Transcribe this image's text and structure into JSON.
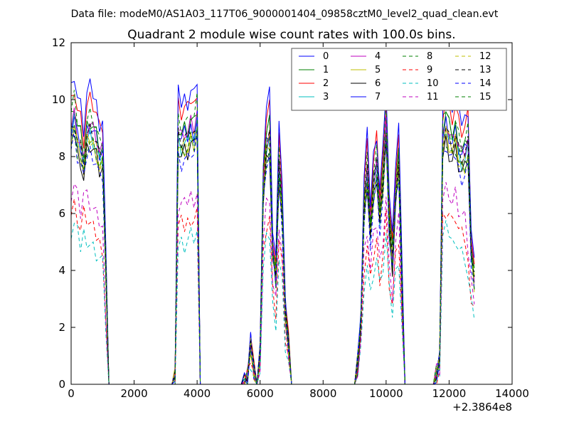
{
  "header": {
    "data_file": "Data file: modeM0/AS1A03_117T06_9000001404_09858cztM0_level2_quad_clean.evt"
  },
  "chart_data": {
    "type": "line",
    "title": "Quadrant 2 module wise count rates with 100.0s bins.",
    "xlabel": "",
    "ylabel": "",
    "xlim": [
      0,
      14000
    ],
    "ylim": [
      0,
      12
    ],
    "x_offset_label": "+2.3864e8",
    "xticks": [
      0,
      2000,
      4000,
      6000,
      8000,
      10000,
      12000,
      14000
    ],
    "xtick_labels": [
      "0",
      "2000",
      "4000",
      "6000",
      "8000",
      "10000",
      "12000",
      "14000"
    ],
    "yticks": [
      0,
      2,
      4,
      6,
      8,
      10,
      12
    ],
    "ytick_labels": [
      "0",
      "2",
      "4",
      "6",
      "8",
      "10",
      "12"
    ],
    "grid": false,
    "legend_placement": "top-right",
    "legend_columns": 4,
    "envelope": {
      "x": [
        0,
        100,
        200,
        300,
        400,
        500,
        600,
        700,
        800,
        900,
        1000,
        1100,
        1200,
        1300,
        1400,
        3200,
        3300,
        3400,
        3500,
        3600,
        3700,
        3800,
        3900,
        4000,
        4100,
        4200,
        4300,
        5400,
        5500,
        5600,
        5700,
        5800,
        5900,
        6000,
        6100,
        6200,
        6300,
        6400,
        6500,
        6600,
        6700,
        6800,
        6900,
        7000,
        7100,
        7200,
        9000,
        9100,
        9200,
        9300,
        9400,
        9500,
        9600,
        9700,
        9800,
        9900,
        10000,
        10100,
        10200,
        10300,
        10400,
        10500,
        10600,
        10700,
        11500,
        11600,
        11700,
        11800,
        11900,
        12000,
        12100,
        12200,
        12300,
        12400,
        12500,
        12600,
        12700,
        12800
      ],
      "y": [
        9.8,
        10.3,
        9.5,
        9.2,
        8.4,
        9.6,
        9.8,
        9.6,
        9.3,
        8.7,
        8.8,
        4.5,
        0,
        0,
        0,
        0,
        0.3,
        9.6,
        9.3,
        9.5,
        9.4,
        9.8,
        9.6,
        10.2,
        0,
        0,
        0,
        0,
        0.05,
        0.3,
        1.6,
        0.5,
        0,
        1.2,
        7.5,
        9.2,
        9.6,
        5.2,
        4.2,
        8.4,
        6.8,
        2.8,
        1.5,
        0,
        0,
        0,
        0,
        0.8,
        2.5,
        6.8,
        8.2,
        6.0,
        7.6,
        8.4,
        6.5,
        7.8,
        10.0,
        6.3,
        4.8,
        7.4,
        8.6,
        4.0,
        0,
        0,
        0,
        0.4,
        0.9,
        9.4,
        10.0,
        9.5,
        9.2,
        9.6,
        9.0,
        8.7,
        8.8,
        9.2,
        5.2,
        4.0
      ],
      "recess_y": [
        6.0,
        6.3,
        5.9,
        5.4,
        6.0,
        5.8,
        5.6,
        5.4,
        5.2,
        5.0,
        4.8,
        2.3,
        0,
        0,
        0,
        0,
        0.15,
        5.5,
        5.6,
        5.5,
        5.7,
        5.9,
        5.8,
        6.0,
        0,
        0,
        0,
        0,
        0.02,
        0.2,
        0.9,
        0.3,
        0,
        0.7,
        4.5,
        5.6,
        5.9,
        3.1,
        2.5,
        5.0,
        4.0,
        1.6,
        0.9,
        0,
        0,
        0,
        0,
        0.5,
        1.4,
        4.0,
        4.8,
        3.5,
        4.5,
        5.0,
        3.8,
        4.6,
        5.9,
        3.6,
        2.8,
        4.4,
        5.1,
        2.4,
        0,
        0,
        0,
        0.25,
        0.55,
        5.8,
        6.1,
        6.0,
        5.6,
        5.9,
        5.4,
        5.2,
        5.1,
        4.2,
        3.2,
        2.8
      ]
    },
    "series": [
      {
        "name": "0",
        "color": "#0000ff",
        "dash": "solid",
        "scale": 0.92
      },
      {
        "name": "1",
        "color": "#008000",
        "dash": "solid",
        "scale": 0.95
      },
      {
        "name": "2",
        "color": "#ff0000",
        "dash": "solid",
        "scale": 1.02
      },
      {
        "name": "3",
        "color": "#00bfbf",
        "dash": "solid",
        "scale": 0.9
      },
      {
        "name": "4",
        "color": "#bf00bf",
        "dash": "solid",
        "scale": 0.93
      },
      {
        "name": "5",
        "color": "#bfbf00",
        "dash": "solid",
        "scale": 0.88
      },
      {
        "name": "6",
        "color": "#000000",
        "dash": "solid",
        "scale": 0.86
      },
      {
        "name": "7",
        "color": "#0000ff",
        "dash": "solid",
        "scale": 1.06
      },
      {
        "name": "8",
        "color": "#008000",
        "dash": "dashed",
        "scale": 0.97
      },
      {
        "name": "9",
        "color": "#ff0000",
        "dash": "dashed",
        "scale": 0.62
      },
      {
        "name": "10",
        "color": "#00bfbf",
        "dash": "dashed",
        "scale": 0.55
      },
      {
        "name": "11",
        "color": "#bf00bf",
        "dash": "dashed",
        "scale": 0.7
      },
      {
        "name": "12",
        "color": "#bfbf00",
        "dash": "dashed",
        "scale": 0.89
      },
      {
        "name": "13",
        "color": "#000000",
        "dash": "dashed",
        "scale": 0.91
      },
      {
        "name": "14",
        "color": "#0000ff",
        "dash": "dashed",
        "scale": 0.84
      },
      {
        "name": "15",
        "color": "#008000",
        "dash": "dashed",
        "scale": 0.87
      }
    ]
  }
}
